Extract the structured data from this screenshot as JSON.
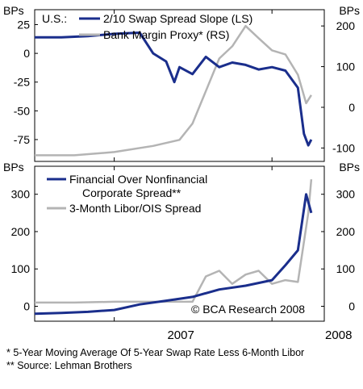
{
  "chart_data": [
    {
      "type": "line",
      "title": "U.S.:",
      "ylabel_left": "BPs",
      "ylabel_right": "BPs",
      "yticks_left": [
        25,
        0,
        -25,
        -50,
        -75
      ],
      "yticks_right": [
        200,
        100,
        0,
        -100
      ],
      "ylim_left": [
        -94,
        38
      ],
      "ylim_right": [
        -133,
        240
      ],
      "xlim": [
        "2006-07",
        "2008-05"
      ],
      "x_labels": [
        "2007",
        "2008"
      ],
      "legend_position": "top-left",
      "series": [
        {
          "name": "2/10 Swap Spread Slope (LS)",
          "axis": "left",
          "color": "#1a2e8c",
          "x": [
            "2006-07",
            "2006-09",
            "2006-11",
            "2007-01",
            "2007-03",
            "2007-04",
            "2007-05",
            "2007-05-20",
            "2007-06",
            "2007-07",
            "2007-08",
            "2007-09",
            "2007-10",
            "2007-11",
            "2007-12",
            "2008-01",
            "2008-02",
            "2008-03",
            "2008-03-15",
            "2008-03-25",
            "2008-04"
          ],
          "values": [
            14,
            14,
            15,
            17,
            18,
            0,
            -7,
            -25,
            -12,
            -18,
            -3,
            -12,
            -8,
            -10,
            -14,
            -12,
            -15,
            -30,
            -70,
            -80,
            -75
          ]
        },
        {
          "name": "Bank Margin Proxy* (RS)",
          "axis": "right",
          "color": "#b4b4b4",
          "x": [
            "2006-07",
            "2006-10",
            "2007-01",
            "2007-04",
            "2007-06",
            "2007-07",
            "2007-08",
            "2007-09",
            "2007-10",
            "2007-11",
            "2007-12",
            "2008-01",
            "2008-02",
            "2008-03",
            "2008-03-20",
            "2008-04"
          ],
          "values": [
            -118,
            -118,
            -110,
            -95,
            -80,
            -40,
            40,
            120,
            150,
            200,
            170,
            140,
            130,
            80,
            10,
            30
          ]
        }
      ]
    },
    {
      "type": "line",
      "ylabel_left": "BPs",
      "ylabel_right": "BPs",
      "yticks_left": [
        300,
        200,
        100,
        0
      ],
      "yticks_right": [
        300,
        200,
        100,
        0
      ],
      "ylim": [
        -40,
        375
      ],
      "xlim": [
        "2006-07",
        "2008-05"
      ],
      "legend_position": "top-left",
      "annotation": "© BCA Research 2008",
      "series": [
        {
          "name": "Financial Over Nonfinancial Corporate Spread**",
          "legend_lines": [
            "Financial Over Nonfinancial",
            "Corporate Spread**"
          ],
          "color": "#1a2e8c",
          "x": [
            "2006-07",
            "2006-09",
            "2006-11",
            "2007-01",
            "2007-03",
            "2007-05",
            "2007-07",
            "2007-09",
            "2007-11",
            "2008-01",
            "2008-02",
            "2008-03",
            "2008-03-20",
            "2008-04"
          ],
          "values": [
            -20,
            -18,
            -15,
            -10,
            5,
            15,
            25,
            45,
            55,
            70,
            110,
            150,
            300,
            250
          ]
        },
        {
          "name": "3-Month Libor/OIS Spread",
          "color": "#b4b4b4",
          "x": [
            "2006-07",
            "2006-10",
            "2007-01",
            "2007-04",
            "2007-07",
            "2007-08",
            "2007-09",
            "2007-10",
            "2007-11",
            "2007-12",
            "2008-01",
            "2008-02",
            "2008-03",
            "2008-03-25",
            "2008-04"
          ],
          "values": [
            10,
            10,
            12,
            12,
            12,
            80,
            95,
            60,
            85,
            95,
            60,
            70,
            65,
            250,
            340
          ]
        }
      ]
    }
  ],
  "footnotes": [
    "*  5-Year Moving Average Of 5-Year Swap Rate Less 6-Month Libor",
    "** Source: Lehman Brothers"
  ]
}
